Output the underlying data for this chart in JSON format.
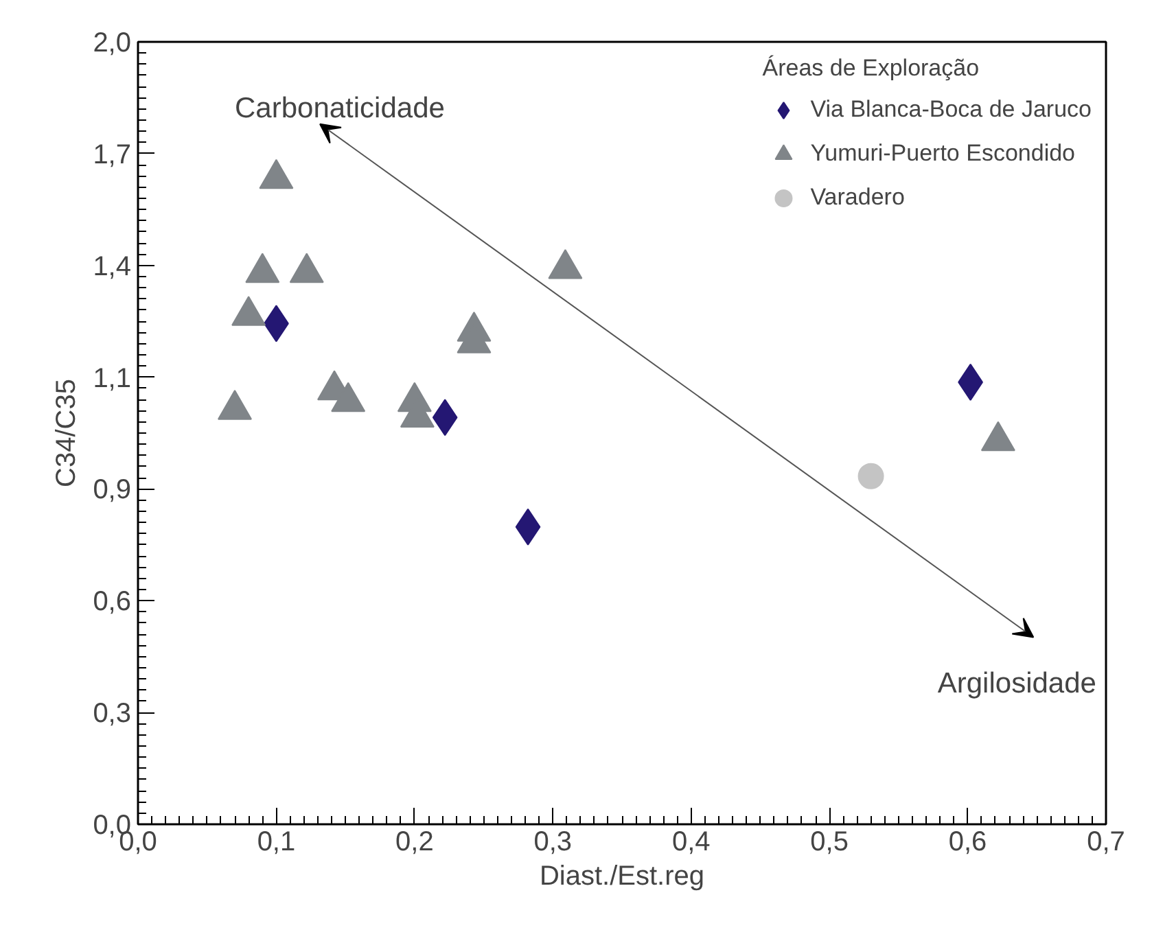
{
  "chart_data": {
    "type": "scatter",
    "xlabel": "Diast./Est.reg",
    "ylabel": "C34/C35",
    "legend_title": "Áreas de Exploração",
    "annotations": [
      "Carbonaticidade",
      "Argilosidade"
    ],
    "series": [
      {
        "name": "Via Blanca-Boca de Jaruco",
        "color": "#241773",
        "marker": "diamond",
        "x": [
          0.1,
          0.222,
          0.282,
          0.602
        ],
        "values": [
          1.28,
          1.04,
          0.76,
          1.13
        ]
      },
      {
        "name": "Yumuri-Puerto Escondido",
        "color": "#808589",
        "marker": "triangle",
        "x": [
          0.1,
          0.09,
          0.122,
          0.08,
          0.07,
          0.142,
          0.152,
          0.2,
          0.202,
          0.243,
          0.243,
          0.309,
          0.622
        ],
        "values": [
          1.65,
          1.41,
          1.41,
          1.3,
          1.06,
          1.11,
          1.08,
          1.08,
          1.04,
          1.26,
          1.23,
          1.42,
          0.98
        ]
      },
      {
        "name": "Varadero",
        "color": "#c4c4c4",
        "marker": "circle",
        "x": [
          0.53
        ],
        "values": [
          0.89
        ]
      }
    ],
    "xlim": [
      0,
      0.7
    ],
    "xticks": [
      {
        "value": 0,
        "label": "0,0"
      },
      {
        "value": 0.1,
        "label": "0,1"
      },
      {
        "value": 0.2,
        "label": "0,2"
      },
      {
        "value": 0.3,
        "label": "0,3"
      },
      {
        "value": 0.4,
        "label": "0,4"
      },
      {
        "value": 0.5,
        "label": "0,5"
      },
      {
        "value": 0.6,
        "label": "0,6"
      },
      {
        "value": 0.7,
        "label": "0,7"
      }
    ],
    "ylim": [
      0,
      2
    ],
    "yticks": [
      {
        "value": 0,
        "label": "0,0"
      },
      {
        "value": 0.2857,
        "label": "0,3"
      },
      {
        "value": 0.5714,
        "label": "0,6"
      },
      {
        "value": 0.8571,
        "label": "0,9"
      },
      {
        "value": 1.1429,
        "label": "1,1"
      },
      {
        "value": 1.4286,
        "label": "1,4"
      },
      {
        "value": 1.7143,
        "label": "1,7"
      },
      {
        "value": 2,
        "label": "2,0"
      }
    ],
    "grid": false,
    "legend": "top right"
  }
}
